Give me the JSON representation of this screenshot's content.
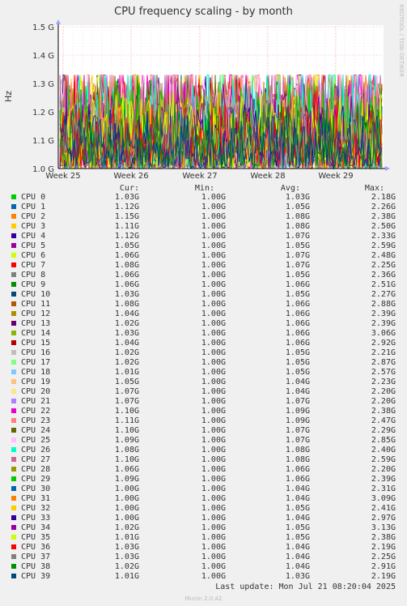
{
  "header": {
    "title": "CPU frequency scaling - by month",
    "side_label": "RRDTOOL / TOBI OETIKER"
  },
  "legend": {
    "col_cur": "Cur:",
    "col_min": "Min:",
    "col_avg": "Avg:",
    "col_max": "Max:",
    "rows": [
      {
        "name": "CPU 0",
        "color": "#00cc00",
        "cur": "1.03G",
        "min": "1.00G",
        "avg": "1.03G",
        "max": "2.18G"
      },
      {
        "name": "CPU 1",
        "color": "#0066b3",
        "cur": "1.12G",
        "min": "1.00G",
        "avg": "1.05G",
        "max": "2.26G"
      },
      {
        "name": "CPU 2",
        "color": "#ff8000",
        "cur": "1.15G",
        "min": "1.00G",
        "avg": "1.08G",
        "max": "2.38G"
      },
      {
        "name": "CPU 3",
        "color": "#ffcc00",
        "cur": "1.11G",
        "min": "1.00G",
        "avg": "1.08G",
        "max": "2.50G"
      },
      {
        "name": "CPU 4",
        "color": "#330099",
        "cur": "1.12G",
        "min": "1.00G",
        "avg": "1.07G",
        "max": "2.33G"
      },
      {
        "name": "CPU 5",
        "color": "#990099",
        "cur": "1.05G",
        "min": "1.00G",
        "avg": "1.05G",
        "max": "2.59G"
      },
      {
        "name": "CPU 6",
        "color": "#ccff00",
        "cur": "1.06G",
        "min": "1.00G",
        "avg": "1.07G",
        "max": "2.48G"
      },
      {
        "name": "CPU 7",
        "color": "#ff0000",
        "cur": "1.08G",
        "min": "1.00G",
        "avg": "1.07G",
        "max": "2.25G"
      },
      {
        "name": "CPU 8",
        "color": "#808080",
        "cur": "1.06G",
        "min": "1.00G",
        "avg": "1.05G",
        "max": "2.36G"
      },
      {
        "name": "CPU 9",
        "color": "#008f00",
        "cur": "1.06G",
        "min": "1.00G",
        "avg": "1.06G",
        "max": "2.51G"
      },
      {
        "name": "CPU 10",
        "color": "#00487d",
        "cur": "1.03G",
        "min": "1.00G",
        "avg": "1.05G",
        "max": "2.27G"
      },
      {
        "name": "CPU 11",
        "color": "#b35a00",
        "cur": "1.08G",
        "min": "1.00G",
        "avg": "1.06G",
        "max": "2.88G"
      },
      {
        "name": "CPU 12",
        "color": "#b38f00",
        "cur": "1.04G",
        "min": "1.00G",
        "avg": "1.06G",
        "max": "2.39G"
      },
      {
        "name": "CPU 13",
        "color": "#6b006b",
        "cur": "1.02G",
        "min": "1.00G",
        "avg": "1.06G",
        "max": "2.39G"
      },
      {
        "name": "CPU 14",
        "color": "#8fb300",
        "cur": "1.03G",
        "min": "1.00G",
        "avg": "1.06G",
        "max": "3.06G"
      },
      {
        "name": "CPU 15",
        "color": "#b30000",
        "cur": "1.04G",
        "min": "1.00G",
        "avg": "1.06G",
        "max": "2.92G"
      },
      {
        "name": "CPU 16",
        "color": "#bebebe",
        "cur": "1.02G",
        "min": "1.00G",
        "avg": "1.05G",
        "max": "2.21G"
      },
      {
        "name": "CPU 17",
        "color": "#80ff80",
        "cur": "1.02G",
        "min": "1.00G",
        "avg": "1.05G",
        "max": "2.87G"
      },
      {
        "name": "CPU 18",
        "color": "#80c9ff",
        "cur": "1.01G",
        "min": "1.00G",
        "avg": "1.05G",
        "max": "2.57G"
      },
      {
        "name": "CPU 19",
        "color": "#ffc080",
        "cur": "1.05G",
        "min": "1.00G",
        "avg": "1.04G",
        "max": "2.23G"
      },
      {
        "name": "CPU 20",
        "color": "#ffe680",
        "cur": "1.07G",
        "min": "1.00G",
        "avg": "1.04G",
        "max": "2.20G"
      },
      {
        "name": "CPU 21",
        "color": "#aa80ff",
        "cur": "1.07G",
        "min": "1.00G",
        "avg": "1.07G",
        "max": "2.20G"
      },
      {
        "name": "CPU 22",
        "color": "#ee00cc",
        "cur": "1.10G",
        "min": "1.00G",
        "avg": "1.09G",
        "max": "2.38G"
      },
      {
        "name": "CPU 23",
        "color": "#ff8080",
        "cur": "1.11G",
        "min": "1.00G",
        "avg": "1.09G",
        "max": "2.47G"
      },
      {
        "name": "CPU 24",
        "color": "#666600",
        "cur": "1.10G",
        "min": "1.00G",
        "avg": "1.07G",
        "max": "2.29G"
      },
      {
        "name": "CPU 25",
        "color": "#ffbfff",
        "cur": "1.09G",
        "min": "1.00G",
        "avg": "1.07G",
        "max": "2.85G"
      },
      {
        "name": "CPU 26",
        "color": "#00ffcc",
        "cur": "1.08G",
        "min": "1.00G",
        "avg": "1.08G",
        "max": "2.40G"
      },
      {
        "name": "CPU 27",
        "color": "#cc6699",
        "cur": "1.10G",
        "min": "1.00G",
        "avg": "1.08G",
        "max": "2.59G"
      },
      {
        "name": "CPU 28",
        "color": "#999900",
        "cur": "1.06G",
        "min": "1.00G",
        "avg": "1.06G",
        "max": "2.20G"
      },
      {
        "name": "CPU 29",
        "color": "#00cc00",
        "cur": "1.09G",
        "min": "1.00G",
        "avg": "1.06G",
        "max": "2.39G"
      },
      {
        "name": "CPU 30",
        "color": "#0066b3",
        "cur": "1.00G",
        "min": "1.00G",
        "avg": "1.04G",
        "max": "2.31G"
      },
      {
        "name": "CPU 31",
        "color": "#ff8000",
        "cur": "1.00G",
        "min": "1.00G",
        "avg": "1.04G",
        "max": "3.09G"
      },
      {
        "name": "CPU 32",
        "color": "#ffcc00",
        "cur": "1.00G",
        "min": "1.00G",
        "avg": "1.05G",
        "max": "2.41G"
      },
      {
        "name": "CPU 33",
        "color": "#330099",
        "cur": "1.00G",
        "min": "1.00G",
        "avg": "1.04G",
        "max": "2.97G"
      },
      {
        "name": "CPU 34",
        "color": "#990099",
        "cur": "1.02G",
        "min": "1.00G",
        "avg": "1.05G",
        "max": "3.13G"
      },
      {
        "name": "CPU 35",
        "color": "#ccff00",
        "cur": "1.01G",
        "min": "1.00G",
        "avg": "1.05G",
        "max": "2.38G"
      },
      {
        "name": "CPU 36",
        "color": "#ff0000",
        "cur": "1.03G",
        "min": "1.00G",
        "avg": "1.04G",
        "max": "2.19G"
      },
      {
        "name": "CPU 37",
        "color": "#808080",
        "cur": "1.03G",
        "min": "1.00G",
        "avg": "1.04G",
        "max": "2.25G"
      },
      {
        "name": "CPU 38",
        "color": "#008f00",
        "cur": "1.02G",
        "min": "1.00G",
        "avg": "1.04G",
        "max": "2.91G"
      },
      {
        "name": "CPU 39",
        "color": "#00487d",
        "cur": "1.01G",
        "min": "1.00G",
        "avg": "1.03G",
        "max": "2.19G"
      }
    ]
  },
  "footer": {
    "last_update": "Last update: Mon Jul 21 08:20:04 2025",
    "version": "Munin 2.0.42"
  },
  "chart_data": {
    "type": "line",
    "title": "CPU frequency scaling - by month",
    "ylabel": "Hz",
    "ylim": [
      1.0,
      1.5
    ],
    "y_unit": "G",
    "yticks": [
      "1.0 G",
      "1.1 G",
      "1.2 G",
      "1.3 G",
      "1.4 G",
      "1.5 G"
    ],
    "x_tick_labels": [
      "Week 25",
      "Week 26",
      "Week 27",
      "Week 28",
      "Week 29"
    ],
    "grid": true,
    "series_count": 40,
    "series_source": "legend.rows"
  }
}
